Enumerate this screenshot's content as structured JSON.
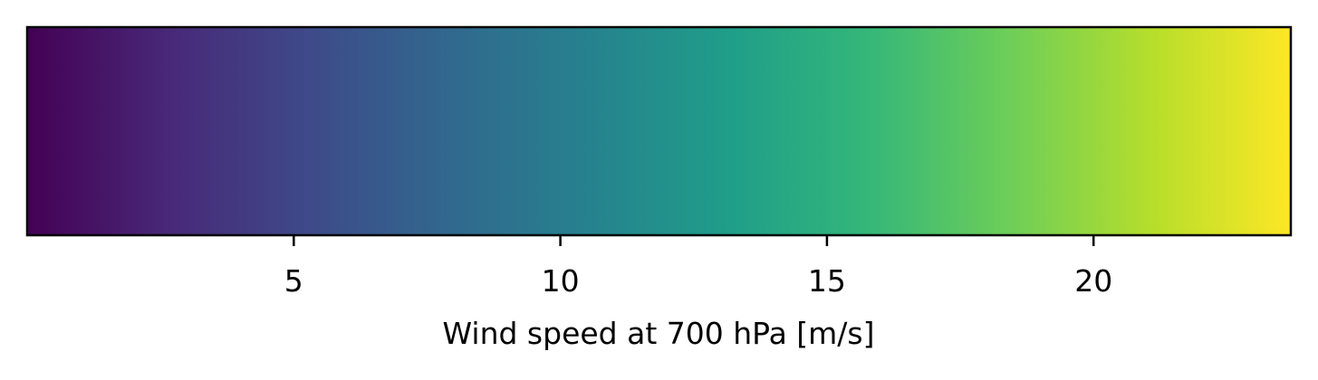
{
  "chart_data": {
    "type": "colorbar",
    "orientation": "horizontal",
    "colormap": "viridis",
    "title": "",
    "xlabel": "Wind speed at 700 hPa [m/s]",
    "xlim": [
      0,
      23.7
    ],
    "ticks": [
      5,
      10,
      15,
      20
    ],
    "tick_labels": [
      "5",
      "10",
      "15",
      "20"
    ],
    "colormap_stops": [
      "#440154",
      "#482878",
      "#3e4a89",
      "#31688e",
      "#26828e",
      "#1f9e89",
      "#35b779",
      "#6ece58",
      "#b5de2b",
      "#fde725"
    ],
    "frame_color": "#000000"
  }
}
